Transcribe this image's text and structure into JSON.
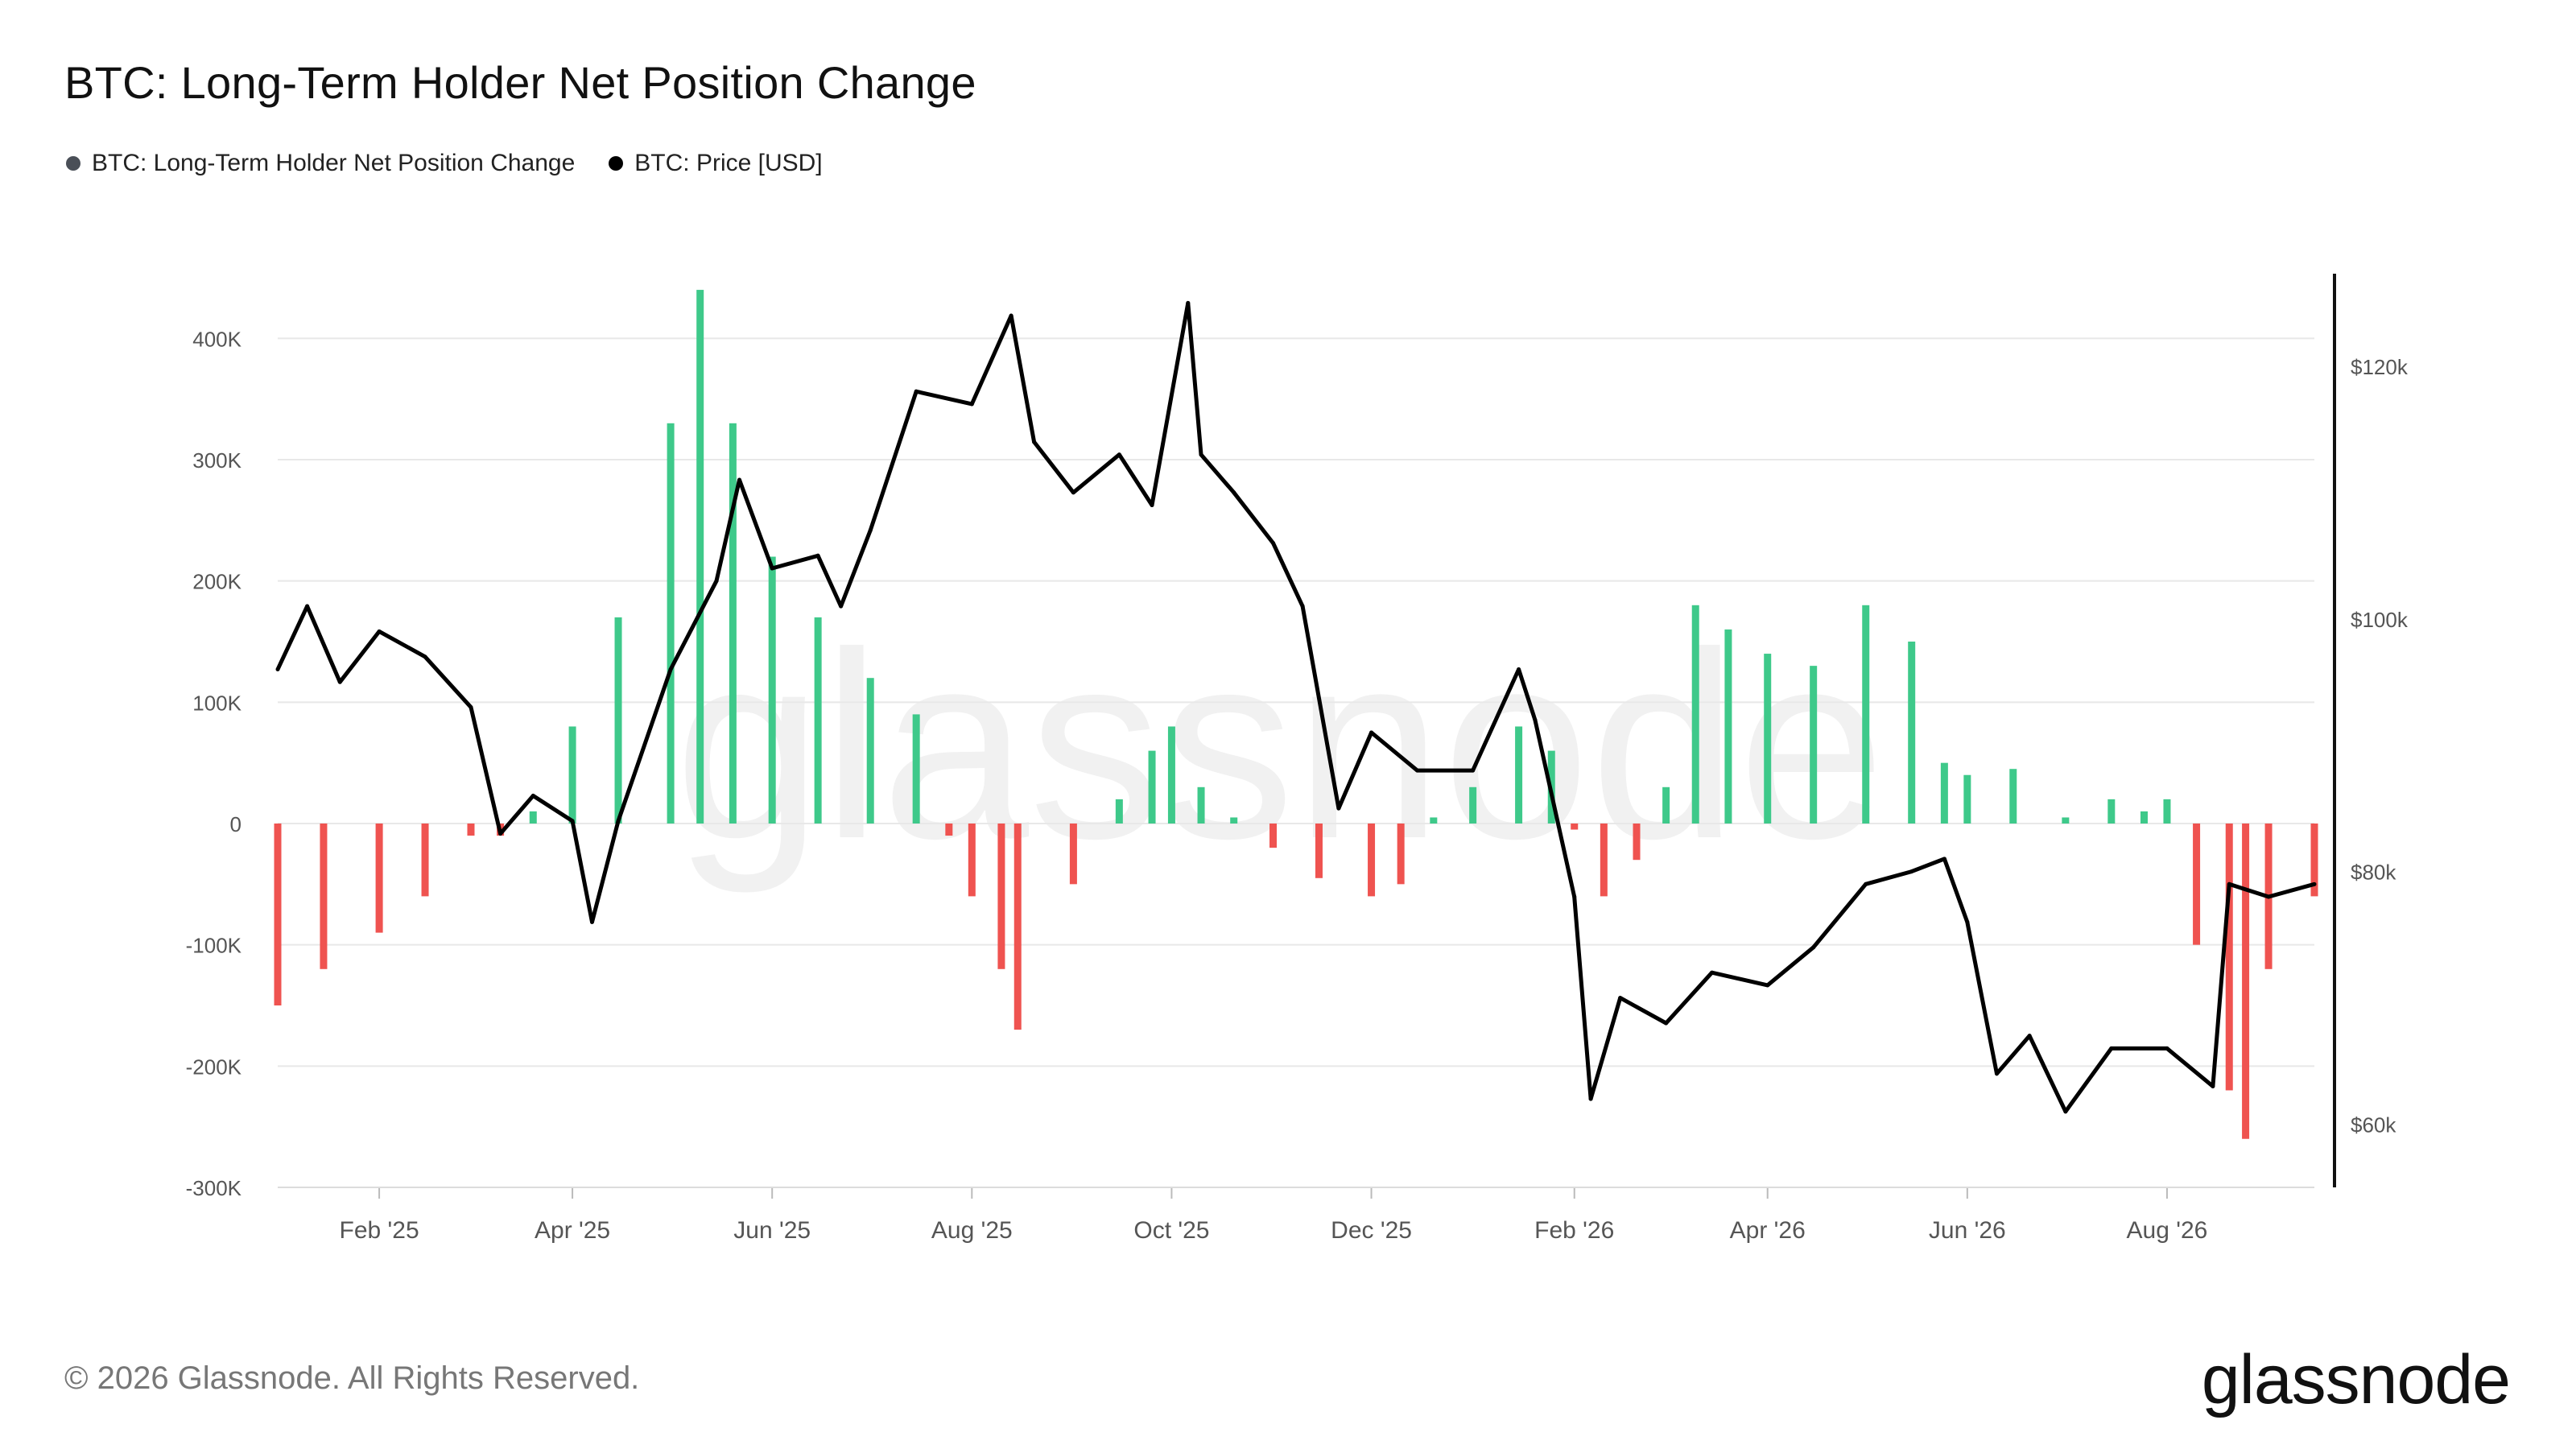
{
  "chart_data": {
    "type": "bar",
    "title": "BTC: Long-Term Holder Net Position Change",
    "legend": [
      {
        "label": "BTC: Long-Term Holder Net Position Change",
        "color": "#4a4f57"
      },
      {
        "label": "BTC: Price [USD]",
        "color": "#000000"
      }
    ],
    "legend_position": "top-left",
    "grid": true,
    "x_ticks": [
      "Feb '25",
      "Apr '25",
      "Jun '25",
      "Aug '25",
      "Oct '25",
      "Dec '25",
      "Feb '26",
      "Apr '26",
      "Jun '26",
      "Aug '26"
    ],
    "y_left_ticks": [
      "400K",
      "300K",
      "200K",
      "100K",
      "0",
      "-100K",
      "-200K",
      "-300K"
    ],
    "y_left_range": [
      -300000,
      450000
    ],
    "y_right_ticks": [
      "$120k",
      "$100k",
      "$80k",
      "$60k"
    ],
    "y_right_range": [
      55000,
      127000
    ],
    "x_range": [
      "2025-01-01",
      "2026-09-15"
    ],
    "watermark": "glassnode",
    "colors": {
      "positive": "#3ec98a",
      "negative": "#ef5350",
      "price": "#000000",
      "grid": "#e8e8e8"
    },
    "series": [
      {
        "name": "BTC: Long-Term Holder Net Position Change",
        "kind": "bar",
        "x": [
          "2025-01-01",
          "2025-01-15",
          "2025-02-01",
          "2025-02-15",
          "2025-03-01",
          "2025-03-10",
          "2025-03-20",
          "2025-04-01",
          "2025-04-15",
          "2025-05-01",
          "2025-05-10",
          "2025-05-20",
          "2025-06-01",
          "2025-06-15",
          "2025-07-01",
          "2025-07-15",
          "2025-07-25",
          "2025-08-01",
          "2025-08-10",
          "2025-08-15",
          "2025-09-01",
          "2025-09-15",
          "2025-09-25",
          "2025-10-01",
          "2025-10-10",
          "2025-10-20",
          "2025-11-01",
          "2025-11-15",
          "2025-12-01",
          "2025-12-10",
          "2025-12-20",
          "2026-01-01",
          "2026-01-15",
          "2026-01-25",
          "2026-02-01",
          "2026-02-10",
          "2026-02-20",
          "2026-03-01",
          "2026-03-10",
          "2026-03-20",
          "2026-04-01",
          "2026-04-15",
          "2026-05-01",
          "2026-05-15",
          "2026-05-25",
          "2026-06-01",
          "2026-06-15",
          "2026-07-01",
          "2026-07-15",
          "2026-07-25",
          "2026-08-01",
          "2026-08-10",
          "2026-08-20",
          "2026-08-25",
          "2026-09-01",
          "2026-09-15"
        ],
        "values": [
          -150000,
          -120000,
          -90000,
          -60000,
          -10000,
          -10000,
          10000,
          80000,
          170000,
          330000,
          440000,
          330000,
          220000,
          170000,
          120000,
          90000,
          -10000,
          -60000,
          -120000,
          -170000,
          -50000,
          20000,
          60000,
          80000,
          30000,
          5000,
          -20000,
          -45000,
          -60000,
          -50000,
          5000,
          30000,
          80000,
          60000,
          -5000,
          -60000,
          -30000,
          30000,
          180000,
          160000,
          140000,
          130000,
          180000,
          150000,
          50000,
          40000,
          45000,
          5000,
          20000,
          10000,
          20000,
          -100000,
          -220000,
          -260000,
          -120000,
          -60000
        ]
      },
      {
        "name": "BTC: Price [USD]",
        "kind": "line",
        "x": [
          "2025-01-01",
          "2025-01-10",
          "2025-01-20",
          "2025-02-01",
          "2025-02-15",
          "2025-03-01",
          "2025-03-10",
          "2025-03-20",
          "2025-04-01",
          "2025-04-07",
          "2025-04-15",
          "2025-05-01",
          "2025-05-15",
          "2025-05-22",
          "2025-06-01",
          "2025-06-15",
          "2025-06-22",
          "2025-07-01",
          "2025-07-15",
          "2025-08-01",
          "2025-08-13",
          "2025-08-20",
          "2025-09-01",
          "2025-09-15",
          "2025-09-25",
          "2025-10-06",
          "2025-10-10",
          "2025-10-20",
          "2025-11-01",
          "2025-11-10",
          "2025-11-21",
          "2025-12-01",
          "2025-12-15",
          "2026-01-01",
          "2026-01-15",
          "2026-01-20",
          "2026-02-01",
          "2026-02-06",
          "2026-02-15",
          "2026-03-01",
          "2026-03-15",
          "2026-04-01",
          "2026-04-15",
          "2026-05-01",
          "2026-05-15",
          "2026-05-25",
          "2026-06-01",
          "2026-06-10",
          "2026-06-20",
          "2026-07-01",
          "2026-07-15",
          "2026-08-01",
          "2026-08-15",
          "2026-08-20",
          "2026-09-01",
          "2026-09-15"
        ],
        "values": [
          96000,
          101000,
          95000,
          99000,
          97000,
          93000,
          83000,
          86000,
          84000,
          76000,
          84000,
          96000,
          103000,
          111000,
          104000,
          105000,
          101000,
          107000,
          118000,
          117000,
          124000,
          114000,
          110000,
          113000,
          109000,
          125000,
          113000,
          110000,
          106000,
          101000,
          85000,
          91000,
          88000,
          88000,
          96000,
          92000,
          78000,
          62000,
          70000,
          68000,
          72000,
          71000,
          74000,
          79000,
          80000,
          81000,
          76000,
          64000,
          67000,
          61000,
          66000,
          66000,
          63000,
          79000,
          78000,
          79000
        ]
      }
    ]
  },
  "footer": {
    "copyright": "© 2026 Glassnode. All Rights Reserved.",
    "logo": "glassnode"
  }
}
